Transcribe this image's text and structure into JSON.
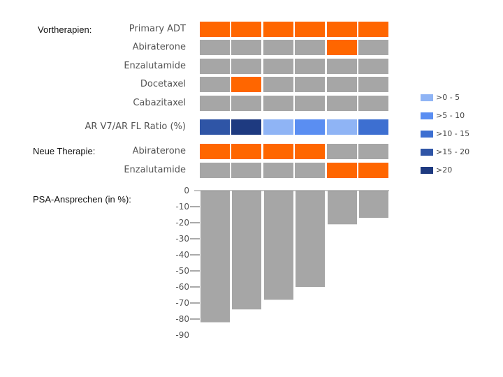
{
  "labels": {
    "vortherapien": "Vortherapien:",
    "neue_therapie": "Neue Therapie:",
    "psa": "PSA-Ansprechen (in %):"
  },
  "chart_data": {
    "type": "bar",
    "title": "",
    "patients": 6,
    "rows_prior": [
      {
        "label": "Primary ADT",
        "values": [
          1,
          1,
          1,
          1,
          1,
          1
        ]
      },
      {
        "label": "Abiraterone",
        "values": [
          0,
          0,
          0,
          0,
          1,
          0
        ]
      },
      {
        "label": "Enzalutamide",
        "values": [
          0,
          0,
          0,
          0,
          0,
          0
        ]
      },
      {
        "label": "Docetaxel",
        "values": [
          0,
          1,
          0,
          0,
          0,
          0
        ]
      },
      {
        "label": "Cabazitaxel",
        "values": [
          0,
          0,
          0,
          0,
          0,
          0
        ]
      }
    ],
    "ratio_row": {
      "label": "AR V7/AR FL Ratio (%)",
      "categories": [
        ">15 - 20",
        ">20",
        ">0 - 5",
        ">5 - 10",
        ">0 - 5",
        ">10 - 15"
      ]
    },
    "rows_new": [
      {
        "label": "Abiraterone",
        "values": [
          1,
          1,
          1,
          1,
          0,
          0
        ]
      },
      {
        "label": "Enzalutamide",
        "values": [
          0,
          0,
          0,
          0,
          1,
          1
        ]
      }
    ],
    "psa_response": {
      "values": [
        -82,
        -74,
        -68,
        -60,
        -21,
        -17
      ],
      "ylim": [
        -90,
        0
      ],
      "ticks": [
        "0",
        "-10",
        "-20",
        "-30",
        "-40",
        "-50",
        "-60",
        "-70",
        "-80",
        "-90"
      ]
    },
    "legend": [
      {
        "label": ">0 - 5",
        "color": "#8fb4f5"
      },
      {
        "label": ">5 - 10",
        "color": "#5a8ef2"
      },
      {
        "label": ">10 - 15",
        "color": "#3d6fd1"
      },
      {
        "label": ">15 - 20",
        "color": "#2f55a6"
      },
      {
        "label": ">20",
        "color": "#1e3a80"
      }
    ],
    "colors": {
      "on": "#ff6600",
      "off": "#a6a6a6",
      "bar": "#a6a6a6"
    }
  }
}
